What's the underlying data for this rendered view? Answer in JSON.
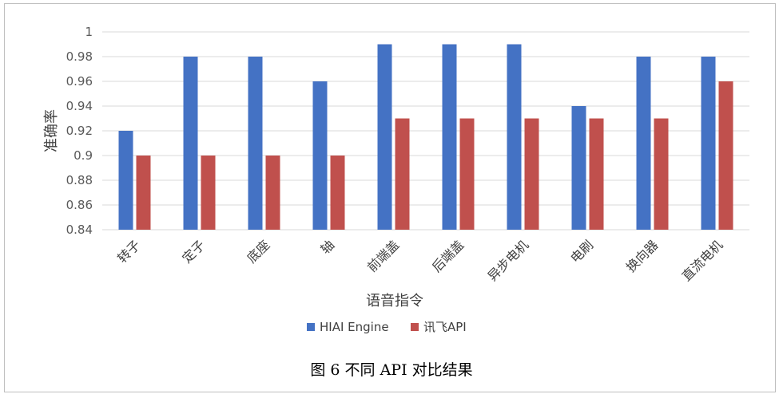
{
  "chart_data": {
    "type": "bar",
    "categories": [
      "转子",
      "定子",
      "底座",
      "轴",
      "前端盖",
      "后端盖",
      "异步电机",
      "电刷",
      "换向器",
      "直流电机"
    ],
    "series": [
      {
        "name": "HIAI Engine",
        "color": "#4472c4",
        "values": [
          0.92,
          0.98,
          0.98,
          0.96,
          0.99,
          0.99,
          0.99,
          0.94,
          0.98,
          0.98
        ]
      },
      {
        "name": "讯飞API",
        "color": "#c0504d",
        "values": [
          0.9,
          0.9,
          0.9,
          0.9,
          0.93,
          0.93,
          0.93,
          0.93,
          0.93,
          0.96
        ]
      }
    ],
    "xlabel": "语音指令",
    "ylabel": "准确率",
    "ylim": [
      0.84,
      1.0
    ],
    "yticks": [
      "0.84",
      "0.86",
      "0.88",
      "0.9",
      "0.92",
      "0.94",
      "0.96",
      "0.98",
      "1"
    ],
    "grid": true,
    "legend_position": "bottom"
  },
  "caption": "图 6  不同 API 对比结果"
}
